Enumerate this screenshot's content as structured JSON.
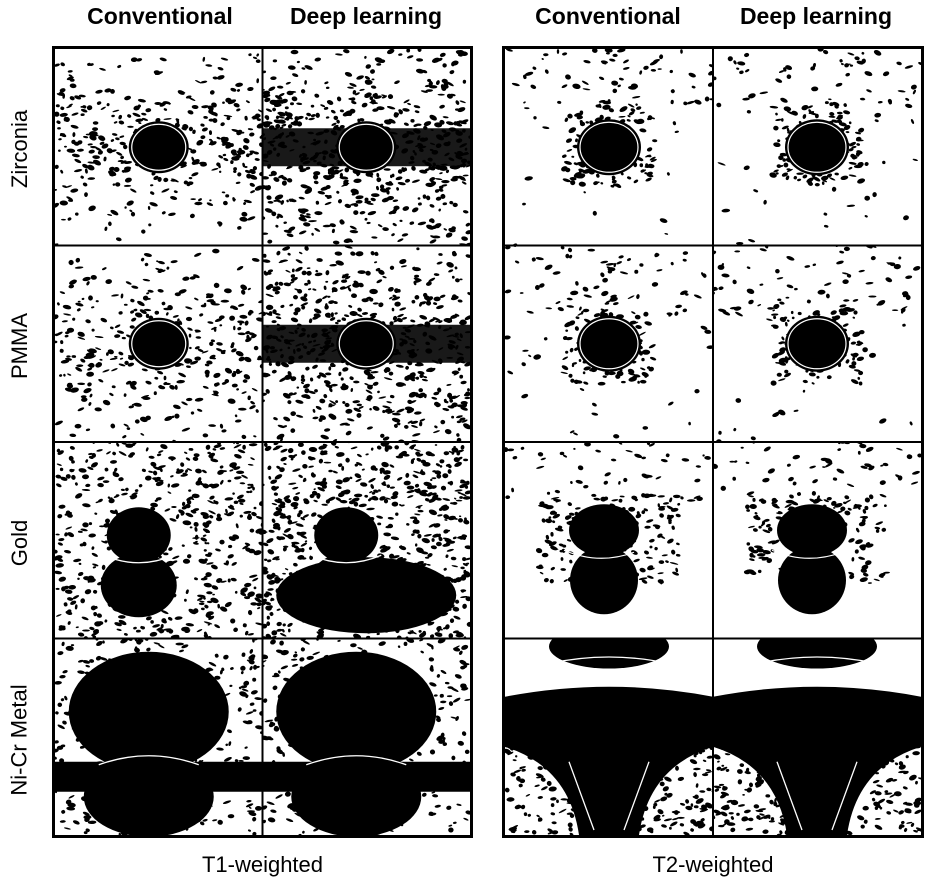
{
  "column_headers": [
    "Conventional",
    "Deep learning",
    "Conventional",
    "Deep learning"
  ],
  "row_labels": [
    "Zirconia",
    "PMMA",
    "Gold",
    "Ni-Cr Metal"
  ],
  "panels": [
    {
      "label": "T1-weighted"
    },
    {
      "label": "T2-weighted"
    }
  ]
}
